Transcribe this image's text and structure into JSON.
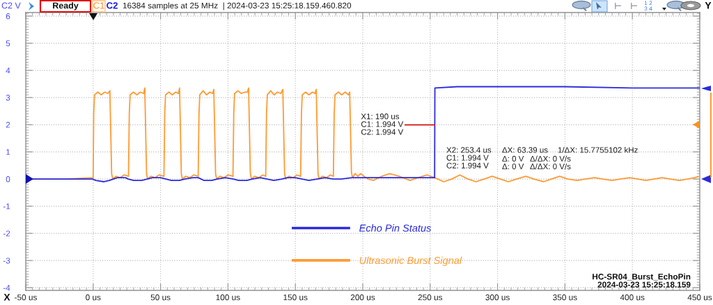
{
  "chart_data": {
    "type": "line",
    "ylabel": "C2 V",
    "xlim": [
      -50,
      450
    ],
    "ylim": [
      -4.1,
      6.13
    ],
    "xticks": [
      {
        "value": -50,
        "label": "-50 us"
      },
      {
        "value": 0,
        "label": "0 us"
      },
      {
        "value": 50,
        "label": "50 us"
      },
      {
        "value": 100,
        "label": "100 us"
      },
      {
        "value": 150,
        "label": "150 us"
      },
      {
        "value": 200,
        "label": "200 us"
      },
      {
        "value": 250,
        "label": "250 us"
      },
      {
        "value": 300,
        "label": "300 us"
      },
      {
        "value": 350,
        "label": "350 us"
      },
      {
        "value": 400,
        "label": "400 us"
      },
      {
        "value": 450,
        "label": "450 us"
      }
    ],
    "yticks": [
      -4,
      -3,
      -2,
      -1,
      0,
      1,
      2,
      3,
      4,
      5,
      6
    ],
    "grid": true,
    "legend": "bottom",
    "line_style": "solid",
    "series": [
      {
        "name": "Echo Pin Status",
        "color": "#2b2bdf",
        "x": [
          -50,
          -0.5,
          2,
          8,
          12,
          15,
          18,
          24,
          26,
          30,
          36,
          40,
          44,
          50,
          54,
          58,
          64,
          68,
          74,
          78,
          82,
          88,
          92,
          98,
          104,
          108,
          114,
          118,
          124,
          129,
          134,
          140,
          144,
          150,
          155,
          160,
          166,
          172,
          178,
          184,
          192,
          200,
          253.3,
          253.5,
          270,
          300,
          350,
          400,
          450
        ],
        "values": [
          0,
          0,
          -0.05,
          -0.1,
          -0.05,
          0,
          0.05,
          0.05,
          0,
          -0.05,
          -0.05,
          0,
          0.05,
          0.05,
          0,
          -0.05,
          -0.05,
          0,
          0.05,
          0.05,
          -0.05,
          -0.05,
          0,
          0.05,
          0,
          -0.05,
          -0.05,
          0,
          0.05,
          0,
          -0.05,
          0,
          0.05,
          0.05,
          0,
          -0.05,
          0,
          0.05,
          0,
          0,
          0.05,
          0.05,
          0.05,
          3.35,
          3.4,
          3.4,
          3.4,
          3.35,
          3.35
        ]
      },
      {
        "name": "Ultrasonic Burst Signal",
        "color": "#ff9a33",
        "x": [
          -50,
          -20,
          0,
          0.4,
          1,
          3.5,
          6,
          8.5,
          11,
          12.4,
          13.7,
          14.5,
          16.9,
          19.9,
          22.9,
          26.2,
          26.8,
          27.4,
          29.9,
          32.4,
          34.9,
          37.4,
          38.3,
          39.6,
          40.4,
          42.8,
          45.8,
          48.8,
          52.5,
          53.1,
          53.7,
          56.2,
          58.7,
          61.2,
          63.2,
          64.1,
          65.4,
          66.2,
          68.6,
          71.6,
          74.6,
          77.9,
          78.5,
          79.1,
          81.6,
          84.1,
          86.6,
          88.6,
          89.5,
          90.8,
          91.6,
          94,
          97,
          100,
          103.7,
          104.3,
          104.9,
          107.4,
          109.9,
          112.4,
          114.4,
          115.3,
          116.6,
          117.4,
          119.8,
          122.8,
          125.8,
          128,
          128.6,
          129.2,
          131.7,
          134.2,
          136.7,
          139.2,
          140.7,
          142,
          142.8,
          145.2,
          148.2,
          151.2,
          153.9,
          154.5,
          155.1,
          157.6,
          160.1,
          162.6,
          164.6,
          165.5,
          166.8,
          167.6,
          170,
          173,
          176,
          178.2,
          178.8,
          179.4,
          181.9,
          184.4,
          186.9,
          189.4,
          190.3,
          191.6,
          192.4,
          194.4,
          196.4,
          198.4,
          201,
          204,
          208,
          214,
          220,
          227,
          235,
          241,
          247.7,
          253.4,
          260,
          266,
          272,
          278,
          284,
          290,
          296,
          302,
          308,
          314,
          321,
          327,
          334,
          340,
          346,
          352,
          359,
          365,
          372,
          378,
          385,
          391,
          398,
          404,
          410,
          416,
          422,
          428,
          435,
          441,
          446,
          450
        ],
        "values": [
          0,
          0,
          0.05,
          2.4,
          3.1,
          3.2,
          3.1,
          3.2,
          3.15,
          3.25,
          0.2,
          0,
          0.1,
          0.05,
          0.15,
          0.1,
          2.4,
          3.1,
          3.2,
          3.1,
          3.2,
          3.15,
          3.35,
          0.2,
          0,
          0.1,
          0.05,
          0.15,
          0.1,
          2.4,
          3.1,
          3.2,
          3.1,
          3.2,
          3.15,
          3.35,
          0.2,
          0,
          0.1,
          0.05,
          0.15,
          0.1,
          2.4,
          3.1,
          3.25,
          3.1,
          3.2,
          3.15,
          3.3,
          0.2,
          0,
          0.1,
          0.05,
          0.15,
          0.1,
          2.4,
          3.15,
          3.25,
          3.15,
          3.2,
          3.2,
          3.35,
          0.2,
          0,
          0.1,
          0.05,
          0.15,
          0.1,
          2.4,
          3.1,
          3.25,
          3.1,
          3.2,
          3.15,
          3.3,
          0.2,
          0,
          0.1,
          0.05,
          0.15,
          0.1,
          2.4,
          3.1,
          3.2,
          3.1,
          3.2,
          3.15,
          3.3,
          0.2,
          0,
          0.1,
          0.05,
          0.15,
          0.1,
          2.4,
          3.1,
          3.2,
          3.1,
          3.2,
          3.1,
          3.2,
          0.25,
          0.05,
          0.2,
          0.1,
          0.2,
          0.1,
          0,
          -0.05,
          0.1,
          0.2,
          0.1,
          -0.05,
          0.05,
          0.15,
          0.05,
          -0.1,
          0,
          0.15,
          0,
          -0.1,
          0,
          0.1,
          0,
          -0.1,
          0,
          0.1,
          0,
          -0.1,
          0,
          0.1,
          0,
          -0.05,
          0,
          0.05,
          0,
          -0.05,
          0,
          0.05,
          0,
          -0.05,
          0,
          0.05,
          0,
          -0.05,
          0,
          0.05,
          0.1
        ]
      }
    ],
    "annotations": [
      "Ready",
      "C1",
      "C2",
      "16384 samples at 25 MHz  | 2024-03-23 15:25:18.159.460.820",
      {
        "text": "X1: 190 us\nC1: 1.994 V\nC2: 1.994 V",
        "x": 253.4,
        "y": 1.994
      },
      "X2: 253.4 us\nC1: 1.994 V\nC2: 1.994 V",
      "ΔX: 63.39 us",
      "Δ: 0 V\nΔ: 0 V",
      "1/ΔX: 15.7755102 kHz",
      "Δ/ΔX: 0 V/s\nΔ/ΔX: 0 V/s",
      "HC-SR04_Burst_EchoPin\n2024-03-23 15:25:18.159",
      "X",
      "1 2\n3 4",
      "Y"
    ]
  }
}
